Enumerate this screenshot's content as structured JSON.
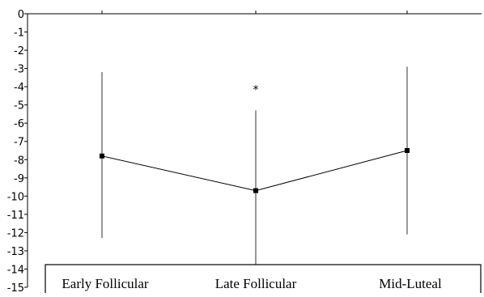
{
  "chart_data": {
    "type": "line",
    "title": "",
    "xlabel": "",
    "ylabel": "",
    "categories": [
      "Early Follicular",
      "Late Follicular",
      "Mid-Luteal"
    ],
    "ylim": [
      -15,
      0
    ],
    "yticks": [
      "0",
      "-1",
      "-2",
      "-3",
      "-4",
      "-5",
      "-6",
      "-7",
      "-8",
      "-9",
      "-10",
      "-11",
      "-12",
      "-13",
      "-14",
      "-15"
    ],
    "series": [
      {
        "values": [
          -7.8,
          -9.7,
          -7.5
        ],
        "error_low": [
          -12.3,
          -15.0,
          -12.1
        ],
        "error_high": [
          -3.2,
          -5.3,
          -2.9
        ]
      }
    ],
    "annotations": [
      {
        "category": "Late Follicular",
        "text": "*",
        "y": -4.1
      }
    ],
    "grid": false,
    "legend": "none"
  }
}
